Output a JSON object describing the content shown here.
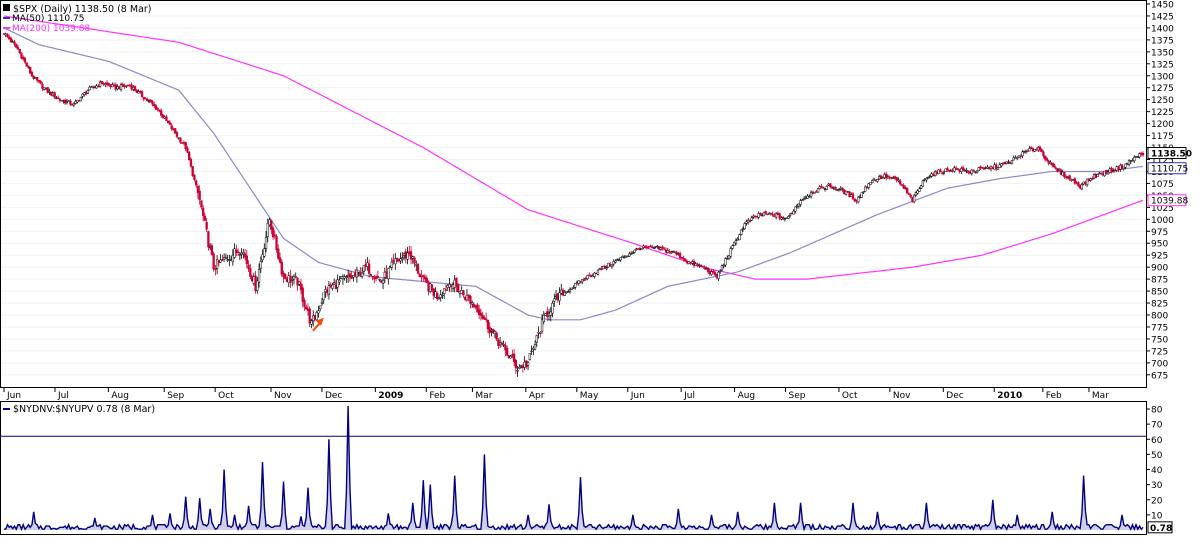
{
  "chart_data": [
    {
      "type": "candlestick",
      "title": "$SPX (Daily) 1138.50 (8 Mar)",
      "legend": [
        {
          "name": "MA(50) 1110.75",
          "color": "#3333aa"
        },
        {
          "name": "MA(200) 1039.88",
          "color": "#ff33ff"
        }
      ],
      "x_ticks": [
        "Jun",
        "Jul",
        "Aug",
        "Sep",
        "Oct",
        "Nov",
        "Dec",
        "2009",
        "Feb",
        "Mar",
        "Apr",
        "May",
        "Jun",
        "Jul",
        "Aug",
        "Sep",
        "Oct",
        "Nov",
        "Dec",
        "2010",
        "Feb",
        "Mar"
      ],
      "y_ticks": [
        675,
        700,
        725,
        750,
        775,
        800,
        825,
        850,
        875,
        900,
        925,
        950,
        975,
        1000,
        1025,
        1050,
        1075,
        1100,
        1125,
        1150,
        1175,
        1200,
        1225,
        1250,
        1275,
        1300,
        1325,
        1350,
        1375,
        1400,
        1425,
        1450
      ],
      "ylim": [
        660,
        1450
      ],
      "last_value": "1138.50",
      "ma50_value": "1110.75",
      "ma200_value": "1039.88",
      "close_anchors": [
        [
          0,
          1390
        ],
        [
          8,
          1355
        ],
        [
          16,
          1300
        ],
        [
          24,
          1270
        ],
        [
          32,
          1250
        ],
        [
          40,
          1240
        ],
        [
          48,
          1270
        ],
        [
          56,
          1285
        ],
        [
          64,
          1275
        ],
        [
          72,
          1280
        ],
        [
          80,
          1255
        ],
        [
          88,
          1230
        ],
        [
          96,
          1190
        ],
        [
          104,
          1150
        ],
        [
          112,
          1040
        ],
        [
          120,
          900
        ],
        [
          128,
          920
        ],
        [
          136,
          940
        ],
        [
          144,
          860
        ],
        [
          152,
          1000
        ],
        [
          160,
          880
        ],
        [
          168,
          870
        ],
        [
          176,
          780
        ],
        [
          184,
          850
        ],
        [
          192,
          870
        ],
        [
          200,
          880
        ],
        [
          208,
          900
        ],
        [
          216,
          870
        ],
        [
          224,
          910
        ],
        [
          232,
          930
        ],
        [
          240,
          870
        ],
        [
          248,
          840
        ],
        [
          256,
          870
        ],
        [
          264,
          840
        ],
        [
          272,
          810
        ],
        [
          280,
          760
        ],
        [
          288,
          720
        ],
        [
          294,
          690
        ],
        [
          300,
          700
        ],
        [
          304,
          740
        ],
        [
          310,
          800
        ],
        [
          318,
          840
        ],
        [
          326,
          860
        ],
        [
          334,
          880
        ],
        [
          344,
          900
        ],
        [
          354,
          920
        ],
        [
          364,
          940
        ],
        [
          374,
          940
        ],
        [
          384,
          930
        ],
        [
          392,
          910
        ],
        [
          400,
          900
        ],
        [
          408,
          880
        ],
        [
          416,
          935
        ],
        [
          424,
          990
        ],
        [
          432,
          1010
        ],
        [
          440,
          1010
        ],
        [
          448,
          1000
        ],
        [
          456,
          1040
        ],
        [
          464,
          1060
        ],
        [
          472,
          1070
        ],
        [
          480,
          1060
        ],
        [
          488,
          1040
        ],
        [
          496,
          1080
        ],
        [
          504,
          1090
        ],
        [
          512,
          1080
        ],
        [
          520,
          1040
        ],
        [
          528,
          1090
        ],
        [
          536,
          1100
        ],
        [
          544,
          1105
        ],
        [
          552,
          1100
        ],
        [
          560,
          1105
        ],
        [
          568,
          1110
        ],
        [
          576,
          1120
        ],
        [
          584,
          1140
        ],
        [
          592,
          1150
        ],
        [
          600,
          1110
        ],
        [
          608,
          1090
        ],
        [
          616,
          1070
        ],
        [
          624,
          1090
        ],
        [
          632,
          1100
        ],
        [
          640,
          1110
        ],
        [
          648,
          1130
        ],
        [
          652,
          1138.5
        ]
      ],
      "ma50_anchors": [
        [
          0,
          1400
        ],
        [
          20,
          1365
        ],
        [
          60,
          1330
        ],
        [
          100,
          1270
        ],
        [
          120,
          1180
        ],
        [
          160,
          960
        ],
        [
          180,
          910
        ],
        [
          210,
          880
        ],
        [
          240,
          870
        ],
        [
          270,
          860
        ],
        [
          300,
          800
        ],
        [
          312,
          790
        ],
        [
          330,
          790
        ],
        [
          350,
          810
        ],
        [
          380,
          860
        ],
        [
          420,
          890
        ],
        [
          450,
          930
        ],
        [
          500,
          1010
        ],
        [
          540,
          1065
        ],
        [
          570,
          1085
        ],
        [
          600,
          1100
        ],
        [
          630,
          1100
        ],
        [
          652,
          1110.75
        ]
      ],
      "ma200_anchors": [
        [
          0,
          1425
        ],
        [
          100,
          1370
        ],
        [
          160,
          1300
        ],
        [
          240,
          1150
        ],
        [
          300,
          1020
        ],
        [
          360,
          950
        ],
        [
          400,
          900
        ],
        [
          430,
          875
        ],
        [
          460,
          875
        ],
        [
          520,
          900
        ],
        [
          560,
          925
        ],
        [
          600,
          970
        ],
        [
          652,
          1039.88
        ]
      ],
      "arrow_annotation": {
        "day": 182,
        "value": 790
      }
    },
    {
      "type": "area",
      "title": "$NYDNV:$NYUPV 0.78 (8 Mar)",
      "y_ticks": [
        10,
        20,
        30,
        40,
        50,
        60,
        70,
        80
      ],
      "ylim": [
        0,
        82
      ],
      "threshold": 62,
      "last_value": "0.78",
      "baseline_values": [
        0.5,
        1.0,
        1.8,
        2.6,
        3.5
      ],
      "spikes": [
        [
          17,
          12
        ],
        [
          52,
          8
        ],
        [
          85,
          10
        ],
        [
          95,
          11
        ],
        [
          104,
          22
        ],
        [
          112,
          21
        ],
        [
          118,
          14
        ],
        [
          126,
          40
        ],
        [
          132,
          10
        ],
        [
          140,
          16
        ],
        [
          148,
          45
        ],
        [
          160,
          32
        ],
        [
          170,
          9
        ],
        [
          174,
          28
        ],
        [
          186,
          60
        ],
        [
          197,
          82
        ],
        [
          220,
          11
        ],
        [
          234,
          18
        ],
        [
          240,
          33
        ],
        [
          244,
          30
        ],
        [
          258,
          36
        ],
        [
          275,
          50
        ],
        [
          300,
          10
        ],
        [
          312,
          17
        ],
        [
          330,
          35
        ],
        [
          360,
          10
        ],
        [
          386,
          14
        ],
        [
          405,
          10
        ],
        [
          420,
          12
        ],
        [
          441,
          18
        ],
        [
          456,
          18
        ],
        [
          486,
          18
        ],
        [
          500,
          12
        ],
        [
          528,
          18
        ],
        [
          566,
          20
        ],
        [
          580,
          10
        ],
        [
          600,
          12
        ],
        [
          618,
          36
        ],
        [
          640,
          10
        ]
      ]
    }
  ]
}
